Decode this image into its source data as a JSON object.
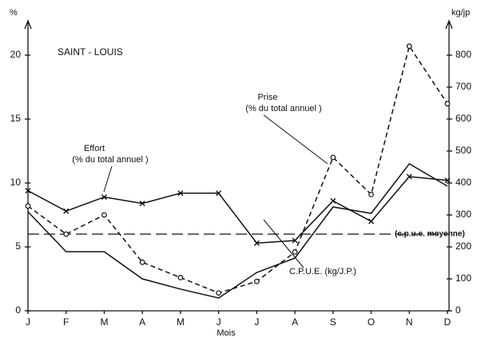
{
  "chart_data": {
    "type": "line",
    "title": "SAINT - LOUIS",
    "x_label": "Mois",
    "y_label": "%",
    "y2_label": "kg/jp",
    "categories": [
      "J",
      "F",
      "M",
      "A",
      "M",
      "J",
      "J",
      "A",
      "S",
      "O",
      "N",
      "D"
    ],
    "ylim": [
      0,
      22
    ],
    "yticks": [
      0,
      5,
      10,
      15,
      20
    ],
    "y2lim": [
      0,
      880
    ],
    "y2ticks": [
      0,
      100,
      200,
      300,
      400,
      500,
      600,
      700,
      800
    ],
    "series": [
      {
        "name": "Effort",
        "note": "(% du total annuel )",
        "color": "#111",
        "dash": false,
        "marker": "cross",
        "axis": "y",
        "values": [
          9.4,
          7.8,
          8.9,
          8.4,
          9.2,
          9.2,
          5.3,
          5.5,
          8.6,
          7.0,
          10.5,
          10.2
        ]
      },
      {
        "name": "Prise",
        "note": "(% du total annuel )",
        "color": "#111",
        "dash": true,
        "marker": "circle",
        "axis": "y",
        "values": [
          8.2,
          6.0,
          7.5,
          3.8,
          2.6,
          1.4,
          2.3,
          4.6,
          12.0,
          9.1,
          20.7,
          16.2
        ]
      },
      {
        "name": "C.P.U.E. (kg/J.P.)",
        "color": "#111",
        "dash": false,
        "marker": "none",
        "axis": "y2",
        "values": [
          310,
          185,
          185,
          100,
          68,
          40,
          120,
          165,
          325,
          305,
          460,
          390
        ]
      }
    ],
    "reference_line": {
      "value": 240,
      "axis": "y2",
      "label": "(c.p.u.e. moyenne)"
    }
  }
}
